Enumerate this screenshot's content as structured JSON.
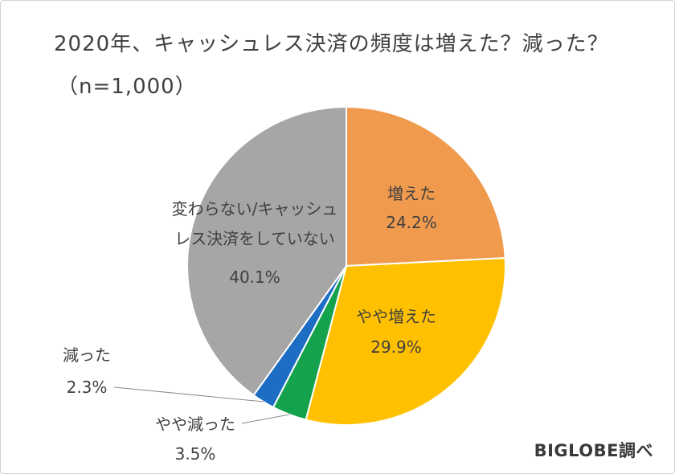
{
  "page": {
    "background_color": "#FFFFFF",
    "border_color": "#D5D2D5",
    "text_color": "#404040"
  },
  "chart_data": {
    "type": "pie",
    "title": "2020年、キャッシュレス決済の頻度は増えた？減った？",
    "subtitle": "（n=1,000）",
    "sample_size": 1000,
    "source": "BIGLOBE調べ",
    "start_angle_deg": 0,
    "direction": "clockwise",
    "text_color": "#404040",
    "leader_line_color": "#8C8C8C",
    "slice_border_color": "#FFFFFF",
    "slices": [
      {
        "label": "増えた",
        "value": 24.2,
        "pct_label": "24.2%",
        "color": "#F09A4E",
        "label_placement": "inside"
      },
      {
        "label": "やや増えた",
        "value": 29.9,
        "pct_label": "29.9%",
        "color": "#FFC000",
        "label_placement": "inside"
      },
      {
        "label": "やや減った",
        "value": 3.5,
        "pct_label": "3.5%",
        "color": "#14A24D",
        "label_placement": "outside"
      },
      {
        "label": "減った",
        "value": 2.3,
        "pct_label": "2.3%",
        "color": "#1D6DC4",
        "label_placement": "outside"
      },
      {
        "label": "変わらない/キャッシュレス決済をしていない",
        "label_lines": [
          "変わらない/キャッシュ",
          "レス決済をしていない"
        ],
        "value": 40.1,
        "pct_label": "40.1%",
        "color": "#A6A6A6",
        "label_placement": "inside"
      }
    ]
  }
}
